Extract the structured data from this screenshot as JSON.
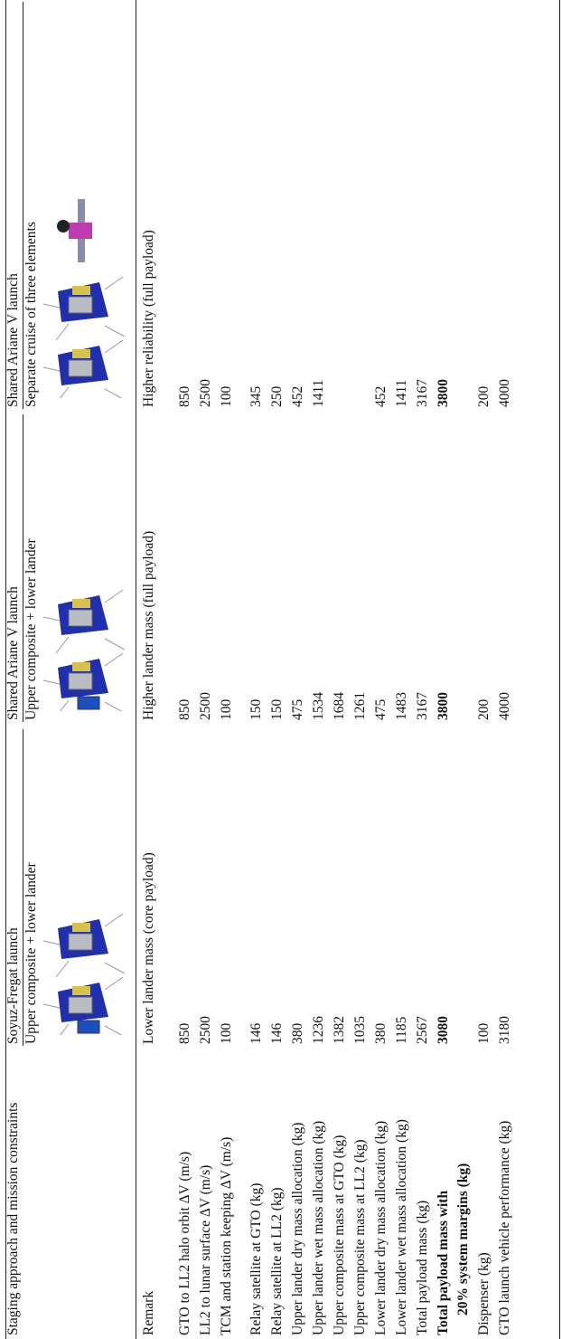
{
  "header": {
    "title": "Staging approach and mission constraints"
  },
  "options": [
    {
      "launch": "Soyuz-Fregat launch",
      "config": "Upper composite + lower lander"
    },
    {
      "launch": "Shared Ariane V launch",
      "config": "Upper composite + lower lander"
    },
    {
      "launch": "Shared Ariane V launch",
      "config": "Separate cruise of three elements"
    }
  ],
  "rows": [
    {
      "label": "Remark",
      "values": [
        "Lower lander mass (core payload)",
        "Higher lander mass (full payload)",
        "Higher reliability (full payload)"
      ]
    },
    {
      "label": "GTO to LL2 halo orbit ΔV (m/s)",
      "values": [
        850,
        850,
        850
      ]
    },
    {
      "label": "LL2 to lunar surface ΔV (m/s)",
      "values": [
        2500,
        2500,
        2500
      ]
    },
    {
      "label": "TCM and station keeping ΔV (m/s)",
      "values": [
        100,
        100,
        100
      ]
    },
    {
      "label": "Relay satellite at GTO (kg)",
      "values": [
        146,
        150,
        345
      ]
    },
    {
      "label": "Relay satellite at LL2 (kg)",
      "values": [
        146,
        150,
        250
      ]
    },
    {
      "label": "Upper lander dry mass allocation (kg)",
      "values": [
        380,
        475,
        452
      ]
    },
    {
      "label": "Upper lander wet mass allocation (kg)",
      "values": [
        1236,
        1534,
        1411
      ]
    },
    {
      "label": "Upper composite mass at GTO (kg)",
      "values": [
        1382,
        1684,
        null
      ]
    },
    {
      "label": "Upper composite mass at LL2 (kg)",
      "values": [
        1035,
        1261,
        null
      ]
    },
    {
      "label": "Lower lander dry mass allocation (kg)",
      "values": [
        380,
        475,
        452
      ]
    },
    {
      "label": "Lower lander wet mass allocation (kg)",
      "values": [
        1185,
        1483,
        1411
      ]
    },
    {
      "label": "Total payload mass (kg)",
      "values": [
        2567,
        3167,
        3167
      ]
    },
    {
      "label": "Total payload mass with",
      "label_line2": "20% system margins (kg)",
      "bold": true,
      "values": [
        3080,
        3800,
        3800
      ]
    },
    {
      "label": "Dispenser (kg)",
      "values": [
        100,
        200,
        200
      ]
    },
    {
      "label": "GTO launch vehicle performance (kg)",
      "values": [
        3180,
        4000,
        4000
      ]
    }
  ]
}
